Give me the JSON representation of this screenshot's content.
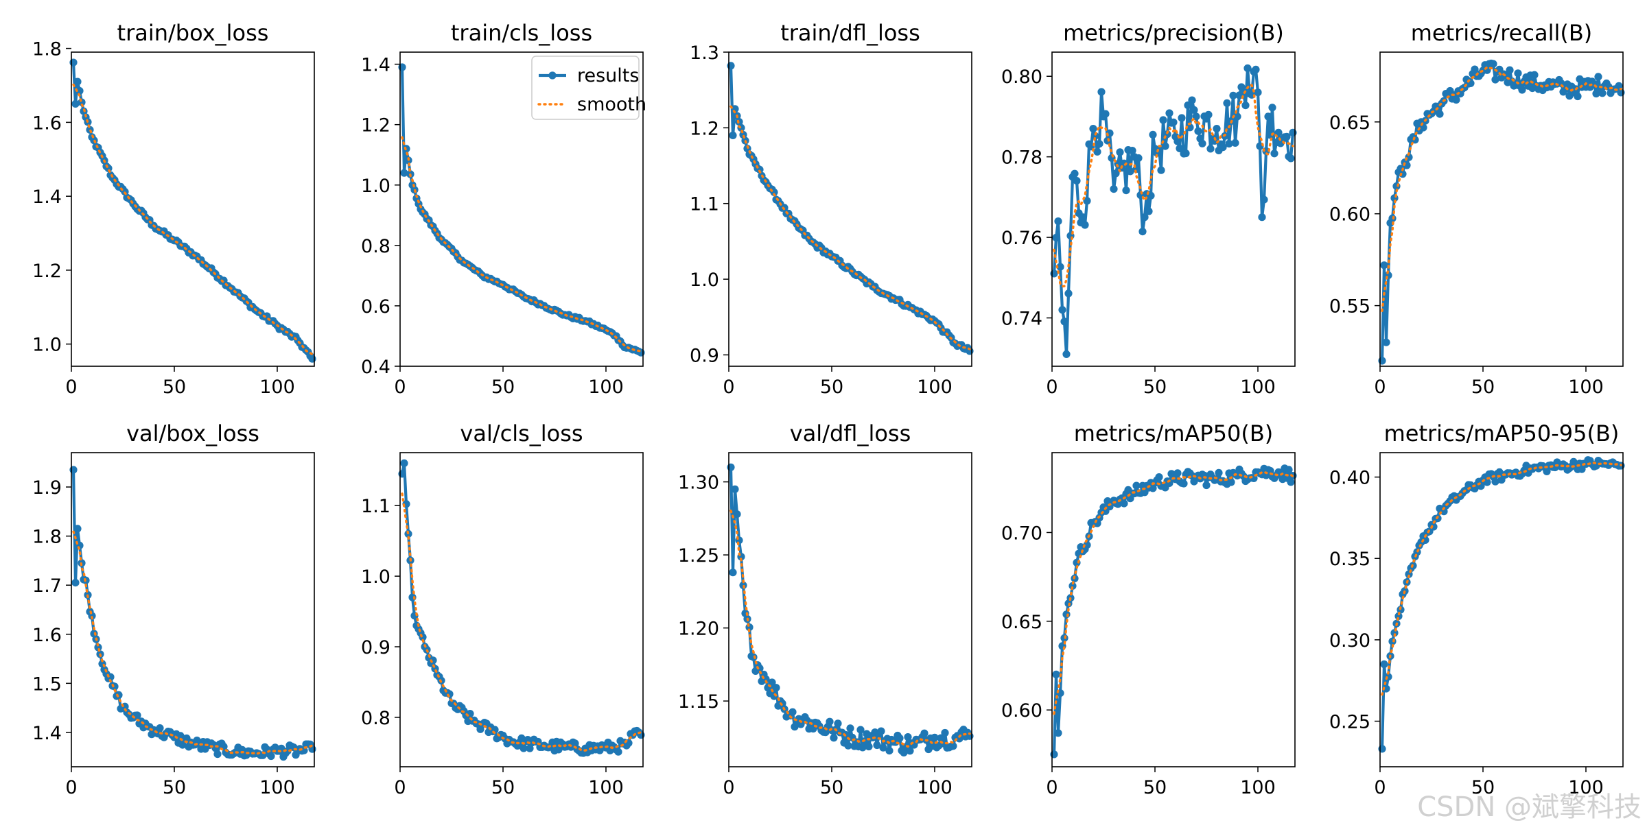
{
  "colors": {
    "results": "#1f77b4",
    "smooth": "#ff7f0e"
  },
  "legend": {
    "results_label": "results",
    "smooth_label": "smooth",
    "placement": "upper-right of train/cls_loss panel"
  },
  "watermark": "CSDN @斌擎科技",
  "chart_data": [
    {
      "type": "line",
      "title": "train/box_loss",
      "xlim": [
        0,
        118
      ],
      "ylim": [
        0.94,
        1.79
      ],
      "xticks": [
        0,
        50,
        100
      ],
      "yticks": [
        1.0,
        1.2,
        1.4,
        1.6,
        1.8
      ],
      "ytick_labels": [
        "1.0",
        "1.2",
        "1.4",
        "1.6",
        "1.8"
      ],
      "anchors": [
        [
          1,
          1.762
        ],
        [
          2,
          1.65
        ],
        [
          3,
          1.71
        ],
        [
          6,
          1.63
        ],
        [
          10,
          1.56
        ],
        [
          20,
          1.45
        ],
        [
          30,
          1.38
        ],
        [
          40,
          1.32
        ],
        [
          50,
          1.28
        ],
        [
          60,
          1.24
        ],
        [
          70,
          1.19
        ],
        [
          80,
          1.14
        ],
        [
          90,
          1.09
        ],
        [
          100,
          1.05
        ],
        [
          110,
          1.01
        ],
        [
          117,
          0.96
        ]
      ],
      "noise": 0.006
    },
    {
      "type": "line",
      "title": "train/cls_loss",
      "xlim": [
        0,
        118
      ],
      "ylim": [
        0.4,
        1.44
      ],
      "xticks": [
        0,
        50,
        100
      ],
      "yticks": [
        0.4,
        0.6,
        0.8,
        1.0,
        1.2,
        1.4
      ],
      "ytick_labels": [
        "0.4",
        "0.6",
        "0.8",
        "1.0",
        "1.2",
        "1.4"
      ],
      "legend": true,
      "anchors": [
        [
          1,
          1.39
        ],
        [
          2,
          1.04
        ],
        [
          3,
          1.12
        ],
        [
          6,
          1.0
        ],
        [
          10,
          0.92
        ],
        [
          20,
          0.82
        ],
        [
          30,
          0.75
        ],
        [
          40,
          0.7
        ],
        [
          50,
          0.67
        ],
        [
          60,
          0.63
        ],
        [
          70,
          0.6
        ],
        [
          80,
          0.57
        ],
        [
          90,
          0.55
        ],
        [
          100,
          0.52
        ],
        [
          105,
          0.5
        ],
        [
          108,
          0.47
        ],
        [
          117,
          0.445
        ]
      ],
      "noise": 0.005
    },
    {
      "type": "line",
      "title": "train/dfl_loss",
      "xlim": [
        0,
        118
      ],
      "ylim": [
        0.885,
        1.3
      ],
      "xticks": [
        0,
        50,
        100
      ],
      "yticks": [
        0.9,
        1.0,
        1.1,
        1.2,
        1.3
      ],
      "ytick_labels": [
        "0.9",
        "1.0",
        "1.1",
        "1.2",
        "1.3"
      ],
      "anchors": [
        [
          1,
          1.282
        ],
        [
          2,
          1.19
        ],
        [
          3,
          1.225
        ],
        [
          6,
          1.2
        ],
        [
          10,
          1.165
        ],
        [
          20,
          1.12
        ],
        [
          30,
          1.08
        ],
        [
          40,
          1.05
        ],
        [
          50,
          1.03
        ],
        [
          60,
          1.01
        ],
        [
          70,
          0.99
        ],
        [
          80,
          0.975
        ],
        [
          90,
          0.96
        ],
        [
          100,
          0.945
        ],
        [
          105,
          0.93
        ],
        [
          110,
          0.915
        ],
        [
          117,
          0.905
        ]
      ],
      "noise": 0.003
    },
    {
      "type": "line",
      "title": "metrics/precision(B)",
      "xlim": [
        0,
        118
      ],
      "ylim": [
        0.728,
        0.806
      ],
      "xticks": [
        0,
        50,
        100
      ],
      "yticks": [
        0.74,
        0.76,
        0.78,
        0.8
      ],
      "ytick_labels": [
        "0.74",
        "0.76",
        "0.78",
        "0.80"
      ],
      "anchors": [
        [
          1,
          0.751
        ],
        [
          3,
          0.764
        ],
        [
          5,
          0.742
        ],
        [
          7,
          0.731
        ],
        [
          10,
          0.775
        ],
        [
          15,
          0.765
        ],
        [
          20,
          0.787
        ],
        [
          25,
          0.79
        ],
        [
          30,
          0.772
        ],
        [
          40,
          0.78
        ],
        [
          45,
          0.765
        ],
        [
          50,
          0.782
        ],
        [
          60,
          0.785
        ],
        [
          70,
          0.79
        ],
        [
          80,
          0.787
        ],
        [
          90,
          0.79
        ],
        [
          95,
          0.802
        ],
        [
          100,
          0.796
        ],
        [
          102,
          0.765
        ],
        [
          105,
          0.79
        ],
        [
          110,
          0.786
        ],
        [
          117,
          0.786
        ]
      ],
      "noise": 0.007
    },
    {
      "type": "line",
      "title": "metrics/recall(B)",
      "xlim": [
        0,
        118
      ],
      "ylim": [
        0.517,
        0.688
      ],
      "xticks": [
        0,
        50,
        100
      ],
      "yticks": [
        0.55,
        0.6,
        0.65
      ],
      "ytick_labels": [
        "0.55",
        "0.60",
        "0.65"
      ],
      "anchors": [
        [
          1,
          0.52
        ],
        [
          2,
          0.572
        ],
        [
          3,
          0.53
        ],
        [
          5,
          0.595
        ],
        [
          8,
          0.615
        ],
        [
          12,
          0.628
        ],
        [
          20,
          0.65
        ],
        [
          30,
          0.66
        ],
        [
          40,
          0.668
        ],
        [
          50,
          0.678
        ],
        [
          60,
          0.676
        ],
        [
          70,
          0.672
        ],
        [
          80,
          0.67
        ],
        [
          90,
          0.668
        ],
        [
          100,
          0.669
        ],
        [
          110,
          0.671
        ],
        [
          117,
          0.666
        ]
      ],
      "noise": 0.005
    },
    {
      "type": "line",
      "title": "val/box_loss",
      "xlim": [
        0,
        118
      ],
      "ylim": [
        1.33,
        1.97
      ],
      "xticks": [
        0,
        50,
        100
      ],
      "yticks": [
        1.4,
        1.5,
        1.6,
        1.7,
        1.8,
        1.9
      ],
      "ytick_labels": [
        "1.4",
        "1.5",
        "1.6",
        "1.7",
        "1.8",
        "1.9"
      ],
      "anchors": [
        [
          1,
          1.935
        ],
        [
          2,
          1.705
        ],
        [
          3,
          1.815
        ],
        [
          5,
          1.745
        ],
        [
          8,
          1.68
        ],
        [
          12,
          1.59
        ],
        [
          18,
          1.51
        ],
        [
          25,
          1.45
        ],
        [
          30,
          1.43
        ],
        [
          40,
          1.405
        ],
        [
          50,
          1.39
        ],
        [
          60,
          1.375
        ],
        [
          70,
          1.368
        ],
        [
          80,
          1.36
        ],
        [
          90,
          1.358
        ],
        [
          100,
          1.362
        ],
        [
          110,
          1.362
        ],
        [
          117,
          1.366
        ]
      ],
      "noise": 0.012
    },
    {
      "type": "line",
      "title": "val/cls_loss",
      "xlim": [
        0,
        118
      ],
      "ylim": [
        0.73,
        1.175
      ],
      "xticks": [
        0,
        50,
        100
      ],
      "yticks": [
        0.8,
        0.9,
        1.0,
        1.1
      ],
      "ytick_labels": [
        "0.8",
        "0.9",
        "1.0",
        "1.1"
      ],
      "anchors": [
        [
          1,
          1.145
        ],
        [
          2,
          1.16
        ],
        [
          4,
          1.06
        ],
        [
          6,
          0.97
        ],
        [
          8,
          0.93
        ],
        [
          12,
          0.9
        ],
        [
          18,
          0.86
        ],
        [
          25,
          0.82
        ],
        [
          35,
          0.795
        ],
        [
          45,
          0.78
        ],
        [
          55,
          0.765
        ],
        [
          70,
          0.76
        ],
        [
          80,
          0.758
        ],
        [
          90,
          0.756
        ],
        [
          100,
          0.757
        ],
        [
          110,
          0.76
        ],
        [
          113,
          0.775
        ],
        [
          117,
          0.775
        ]
      ],
      "noise": 0.008
    },
    {
      "type": "line",
      "title": "val/dfl_loss",
      "xlim": [
        0,
        118
      ],
      "ylim": [
        1.105,
        1.32
      ],
      "xticks": [
        0,
        50,
        100
      ],
      "yticks": [
        1.15,
        1.2,
        1.25,
        1.3
      ],
      "ytick_labels": [
        "1.15",
        "1.20",
        "1.25",
        "1.30"
      ],
      "anchors": [
        [
          1,
          1.31
        ],
        [
          2,
          1.238
        ],
        [
          3,
          1.295
        ],
        [
          5,
          1.26
        ],
        [
          8,
          1.21
        ],
        [
          12,
          1.18
        ],
        [
          18,
          1.165
        ],
        [
          25,
          1.15
        ],
        [
          30,
          1.14
        ],
        [
          40,
          1.135
        ],
        [
          50,
          1.13
        ],
        [
          60,
          1.125
        ],
        [
          70,
          1.125
        ],
        [
          80,
          1.122
        ],
        [
          90,
          1.12
        ],
        [
          100,
          1.125
        ],
        [
          110,
          1.125
        ],
        [
          117,
          1.126
        ]
      ],
      "noise": 0.007
    },
    {
      "type": "line",
      "title": "metrics/mAP50(B)",
      "xlim": [
        0,
        118
      ],
      "ylim": [
        0.568,
        0.745
      ],
      "xticks": [
        0,
        50,
        100
      ],
      "yticks": [
        0.6,
        0.65,
        0.7
      ],
      "ytick_labels": [
        "0.60",
        "0.65",
        "0.70"
      ],
      "anchors": [
        [
          1,
          0.575
        ],
        [
          2,
          0.62
        ],
        [
          3,
          0.587
        ],
        [
          5,
          0.636
        ],
        [
          8,
          0.66
        ],
        [
          12,
          0.683
        ],
        [
          20,
          0.705
        ],
        [
          30,
          0.718
        ],
        [
          40,
          0.722
        ],
        [
          50,
          0.728
        ],
        [
          60,
          0.73
        ],
        [
          70,
          0.731
        ],
        [
          80,
          0.73
        ],
        [
          90,
          0.732
        ],
        [
          100,
          0.734
        ],
        [
          110,
          0.734
        ],
        [
          117,
          0.732
        ]
      ],
      "noise": 0.004
    },
    {
      "type": "line",
      "title": "metrics/mAP50-95(B)",
      "xlim": [
        0,
        118
      ],
      "ylim": [
        0.222,
        0.415
      ],
      "xticks": [
        0,
        50,
        100
      ],
      "yticks": [
        0.25,
        0.3,
        0.35,
        0.4
      ],
      "ytick_labels": [
        "0.25",
        "0.30",
        "0.35",
        "0.40"
      ],
      "anchors": [
        [
          1,
          0.233
        ],
        [
          2,
          0.285
        ],
        [
          3,
          0.27
        ],
        [
          5,
          0.29
        ],
        [
          8,
          0.31
        ],
        [
          12,
          0.33
        ],
        [
          20,
          0.36
        ],
        [
          30,
          0.38
        ],
        [
          40,
          0.39
        ],
        [
          50,
          0.398
        ],
        [
          60,
          0.401
        ],
        [
          70,
          0.404
        ],
        [
          80,
          0.406
        ],
        [
          90,
          0.407
        ],
        [
          100,
          0.408
        ],
        [
          110,
          0.408
        ],
        [
          117,
          0.407
        ]
      ],
      "noise": 0.003
    }
  ]
}
